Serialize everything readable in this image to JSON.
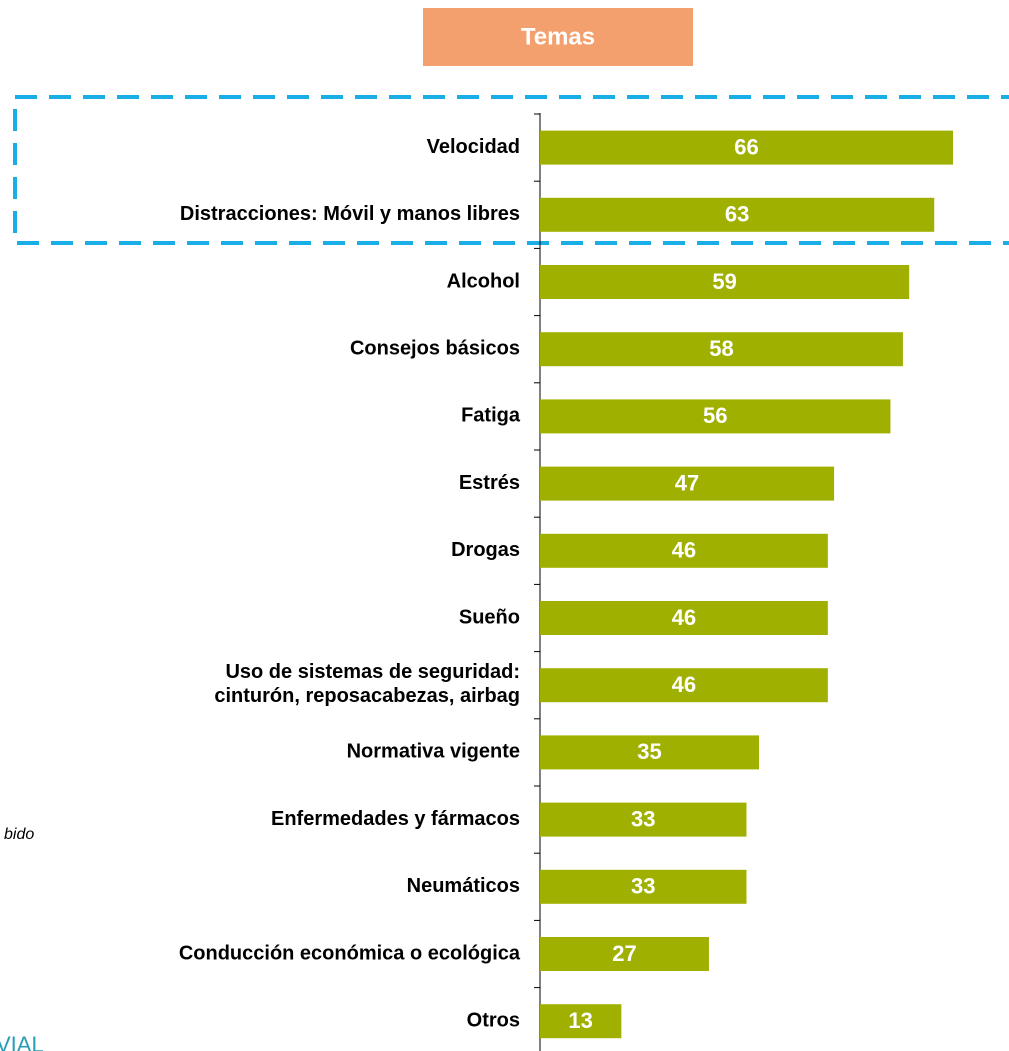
{
  "chart_data": {
    "type": "barh",
    "title": "Temas",
    "categories": [
      "Velocidad",
      "Distracciones: Móvil y manos libres",
      "Alcohol",
      "Consejos básicos",
      "Fatiga",
      "Estrés",
      "Drogas",
      "Sueño",
      "Uso de sistemas de seguridad:\ncinturón, reposacabezas, airbag",
      "Normativa vigente",
      "Enfermedades y fármacos",
      "Neumáticos",
      "Conducción económica o ecológica",
      "Otros"
    ],
    "values": [
      66,
      63,
      59,
      58,
      56,
      47,
      46,
      46,
      46,
      35,
      33,
      33,
      27,
      13
    ],
    "color": "#a0b000",
    "title_color": "#f4a06e",
    "highlight_color": "#1aaee6",
    "annotations": [
      "bido",
      "VIAL"
    ]
  }
}
